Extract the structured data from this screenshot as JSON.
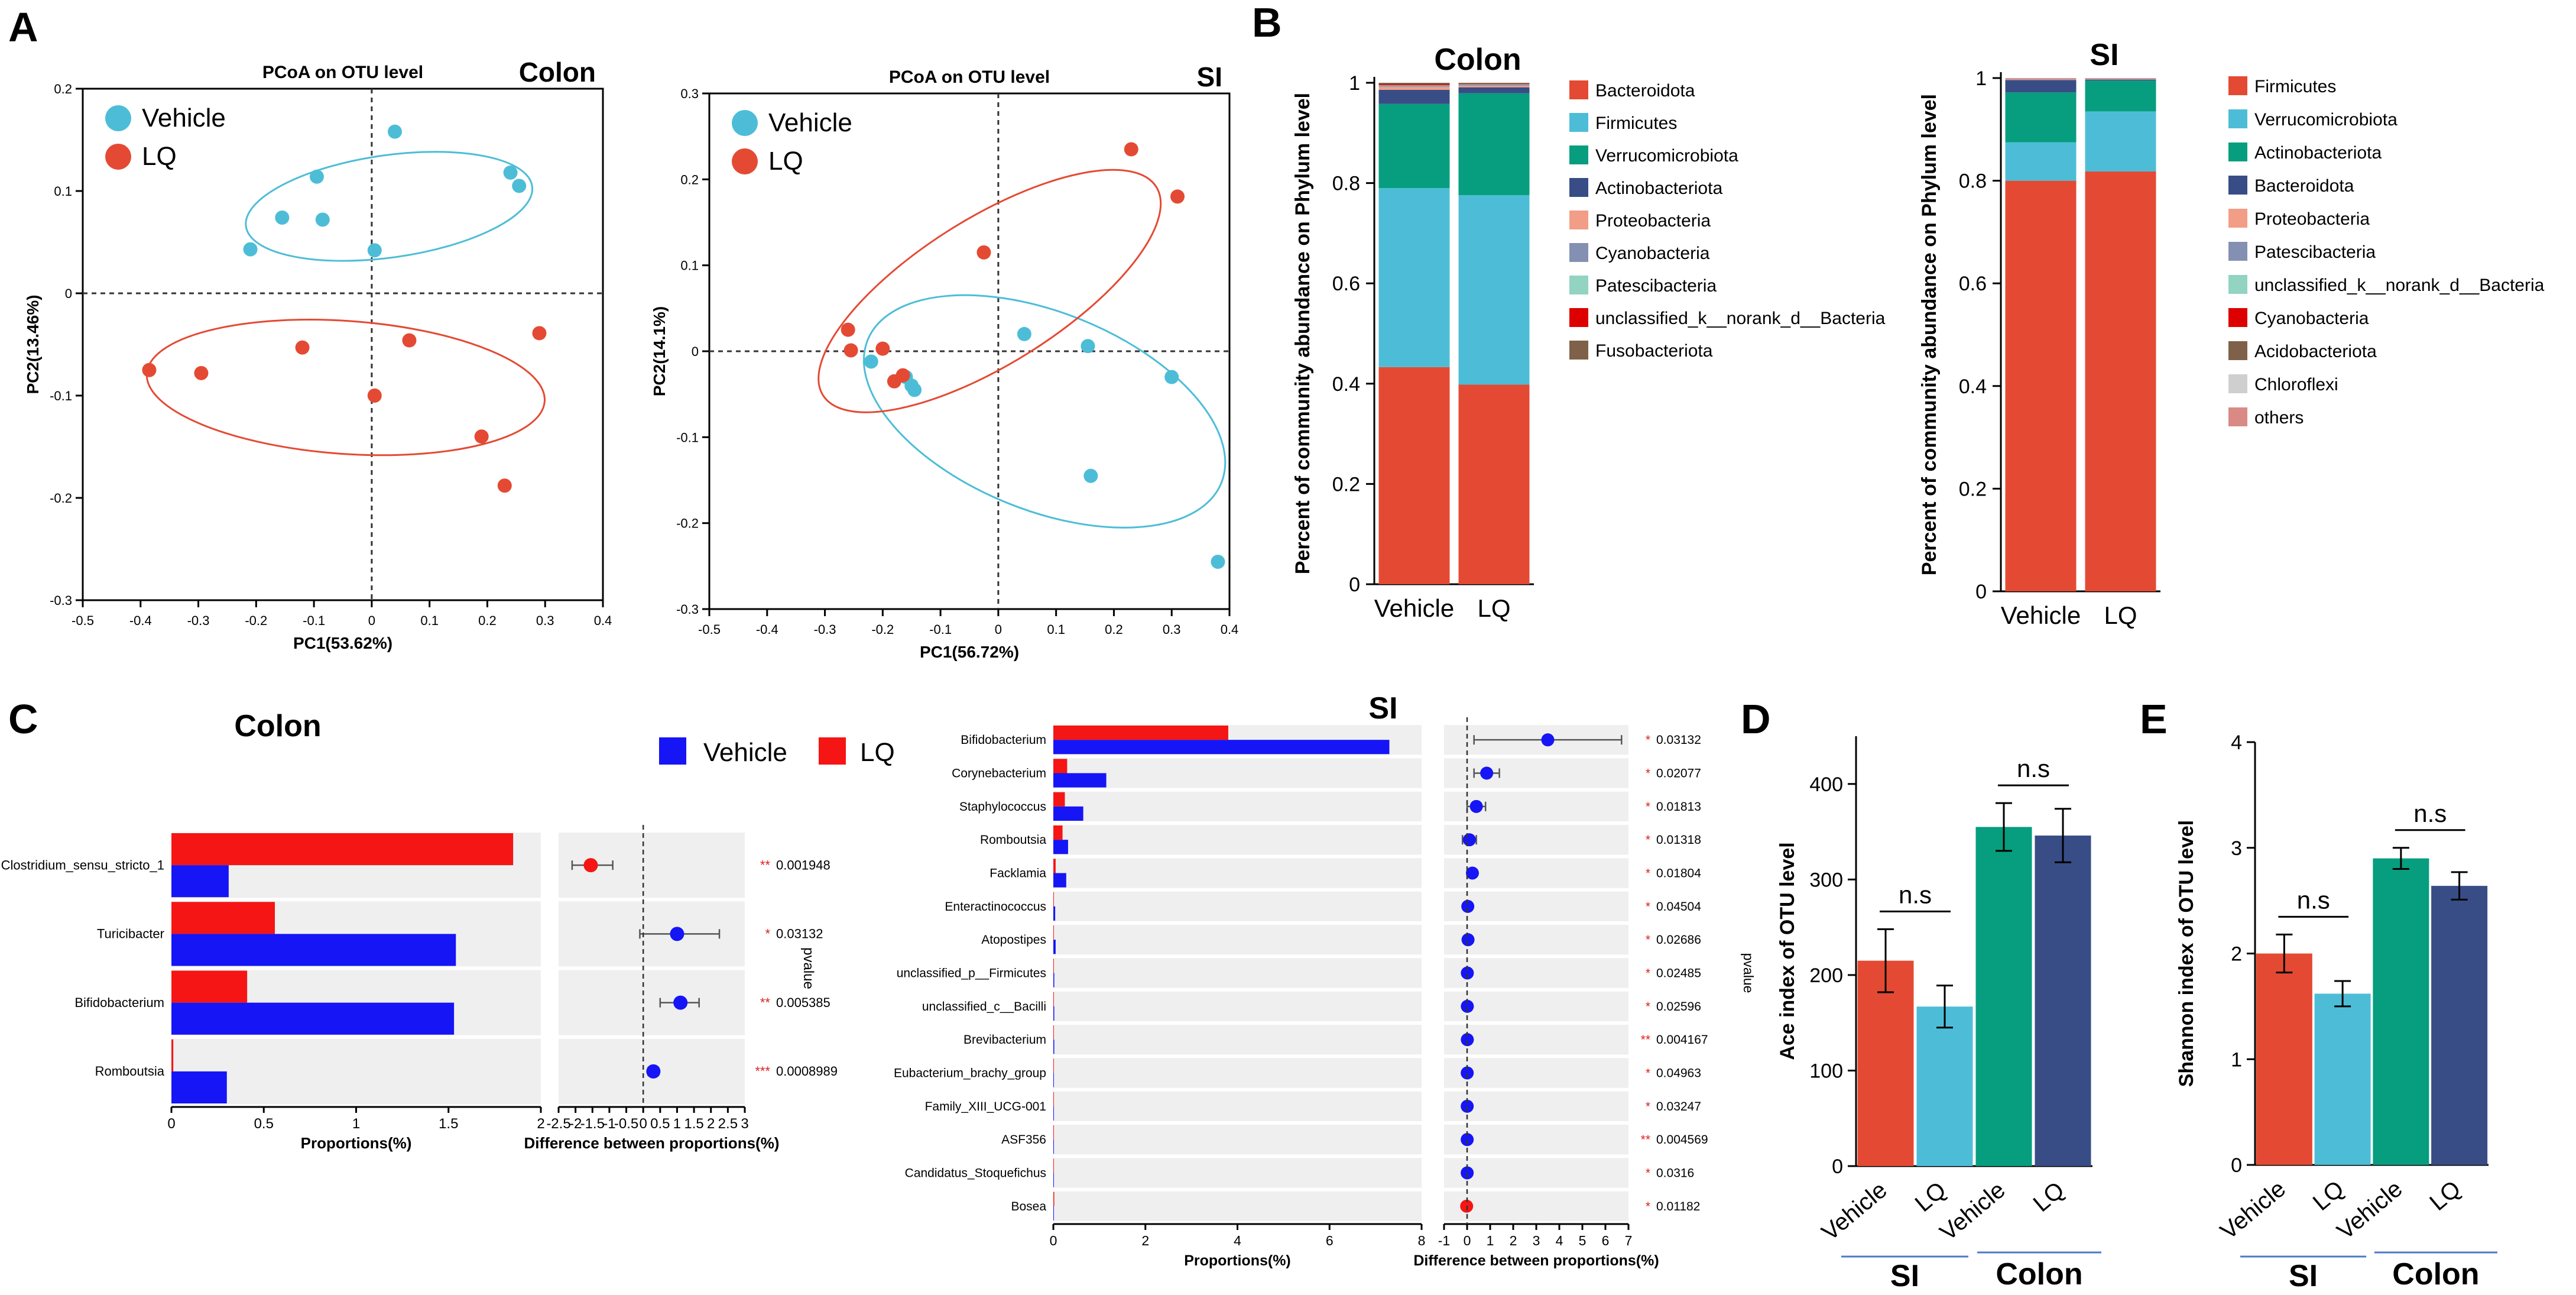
{
  "panel_labels": {
    "A": "A",
    "B": "B",
    "C": "C",
    "D": "D",
    "E": "E"
  },
  "colors": {
    "vehicle": "#4DBDD7",
    "lq": "#E44A33",
    "vehicle_c": "#1515F5",
    "lq_c": "#F51515",
    "teal": "#069E7E",
    "navy": "#384D86"
  },
  "chart_data": [
    {
      "id": "pcoa_colon",
      "type": "scatter",
      "title": "PCoA on OTU level",
      "corner_label": "Colon",
      "xlabel": "PC1(53.62%)",
      "ylabel": "PC2(13.46%)",
      "xlim": [
        -0.5,
        0.4
      ],
      "ylim": [
        -0.3,
        0.2
      ],
      "xticks": [
        "-0.5",
        "-0.4",
        "-0.3",
        "-0.2",
        "-0.1",
        "0",
        "0.1",
        "0.2",
        "0.3",
        "0.4"
      ],
      "yticks": [
        "0.2",
        "0.1",
        "0",
        "-0.1",
        "-0.2",
        "-0.3"
      ],
      "legend": [
        "Vehicle",
        "LQ"
      ],
      "series": [
        {
          "name": "Vehicle",
          "points": [
            [
              0.04,
              0.158
            ],
            [
              -0.095,
              0.114
            ],
            [
              -0.155,
              0.074
            ],
            [
              -0.085,
              0.072
            ],
            [
              0.24,
              0.118
            ],
            [
              0.255,
              0.105
            ],
            [
              -0.21,
              0.043
            ],
            [
              0.005,
              0.042
            ]
          ],
          "ellipse": {
            "cx": 0.03,
            "cy": 0.085,
            "rx": 0.25,
            "ry": 0.05,
            "angle": 8
          }
        },
        {
          "name": "LQ",
          "points": [
            [
              -0.385,
              -0.075
            ],
            [
              -0.295,
              -0.078
            ],
            [
              -0.12,
              -0.053
            ],
            [
              0.065,
              -0.046
            ],
            [
              0.29,
              -0.039
            ],
            [
              0.005,
              -0.1
            ],
            [
              0.19,
              -0.14
            ],
            [
              0.23,
              -0.188
            ]
          ],
          "ellipse": {
            "cx": -0.045,
            "cy": -0.092,
            "rx": 0.345,
            "ry": 0.065,
            "angle": -4
          }
        }
      ]
    },
    {
      "id": "pcoa_si",
      "type": "scatter",
      "title": "PCoA on OTU level",
      "corner_label": "SI",
      "xlabel": "PC1(56.72%)",
      "ylabel": "PC2(14.1%)",
      "xlim": [
        -0.5,
        0.4
      ],
      "ylim": [
        -0.3,
        0.3
      ],
      "xticks": [
        "-0.5",
        "-0.4",
        "-0.3",
        "-0.2",
        "-0.1",
        "0",
        "0.1",
        "0.2",
        "0.3",
        "0.4"
      ],
      "yticks": [
        "0.3",
        "0.2",
        "0.1",
        "0",
        "-0.1",
        "-0.2",
        "-0.3"
      ],
      "legend": [
        "Vehicle",
        "LQ"
      ],
      "series": [
        {
          "name": "Vehicle",
          "points": [
            [
              -0.22,
              -0.012
            ],
            [
              -0.16,
              -0.03
            ],
            [
              -0.15,
              -0.04
            ],
            [
              -0.145,
              -0.045
            ],
            [
              0.045,
              0.02
            ],
            [
              0.155,
              0.006
            ],
            [
              0.3,
              -0.03
            ],
            [
              0.16,
              -0.145
            ],
            [
              0.38,
              -0.245
            ]
          ],
          "ellipse": {
            "cx": 0.08,
            "cy": -0.07,
            "rx": 0.33,
            "ry": 0.115,
            "angle": -22
          }
        },
        {
          "name": "LQ",
          "points": [
            [
              0.23,
              0.235
            ],
            [
              0.31,
              0.18
            ],
            [
              -0.025,
              0.115
            ],
            [
              -0.26,
              0.025
            ],
            [
              -0.255,
              0.001
            ],
            [
              -0.2,
              0.003
            ],
            [
              -0.18,
              -0.035
            ],
            [
              -0.165,
              -0.028
            ]
          ],
          "ellipse": {
            "cx": -0.015,
            "cy": 0.07,
            "rx": 0.34,
            "ry": 0.085,
            "angle": 32
          }
        }
      ]
    },
    {
      "id": "phylum_colon",
      "type": "bar",
      "stacked": true,
      "title": "Colon",
      "ylabel": "Percent of community abundance on Phylum level",
      "categories": [
        "Vehicle",
        "LQ"
      ],
      "ylim": [
        0,
        1
      ],
      "yticks": [
        "0",
        "0.2",
        "0.4",
        "0.6",
        "0.8",
        "1"
      ],
      "series": [
        {
          "name": "Bacteroidota",
          "color": "#E44A33",
          "values": [
            0.433,
            0.398
          ]
        },
        {
          "name": "Firmicutes",
          "color": "#4DBDD7",
          "values": [
            0.357,
            0.378
          ]
        },
        {
          "name": "Verrucomicrobiota",
          "color": "#069E7E",
          "values": [
            0.168,
            0.203
          ]
        },
        {
          "name": "Actinobacteriota",
          "color": "#384D86",
          "values": [
            0.028,
            0.012
          ]
        },
        {
          "name": "Proteobacteria",
          "color": "#F29E86",
          "values": [
            0.006,
            0.003
          ]
        },
        {
          "name": "Cyanobacteria",
          "color": "#8490B2",
          "values": [
            0.002,
            0.002
          ]
        },
        {
          "name": "Patescibacteria",
          "color": "#92D3C2",
          "values": [
            0.001,
            0.001
          ]
        },
        {
          "name": "unclassified_k__norank_d__Bacteria",
          "color": "#DC0000",
          "values": [
            0.002,
            0.001
          ]
        },
        {
          "name": "Fusobacteriota",
          "color": "#7E6148",
          "values": [
            0.003,
            0.002
          ]
        }
      ]
    },
    {
      "id": "phylum_si",
      "type": "bar",
      "stacked": true,
      "title": "SI",
      "ylabel": "Percent of community abundance on Phylum level",
      "categories": [
        "Vehicle",
        "LQ"
      ],
      "ylim": [
        0,
        1
      ],
      "yticks": [
        "0",
        "0.2",
        "0.4",
        "0.6",
        "0.8",
        "1"
      ],
      "series": [
        {
          "name": "Firmicutes",
          "color": "#E44A33",
          "values": [
            0.8,
            0.818
          ]
        },
        {
          "name": "Verrucomicrobiota",
          "color": "#4DBDD7",
          "values": [
            0.075,
            0.117
          ]
        },
        {
          "name": "Actinobacteriota",
          "color": "#069E7E",
          "values": [
            0.097,
            0.06
          ]
        },
        {
          "name": "Bacteroidota",
          "color": "#384D86",
          "values": [
            0.024,
            0.002
          ]
        },
        {
          "name": "Proteobacteria",
          "color": "#F29E86",
          "values": [
            0.001,
            0.001
          ]
        },
        {
          "name": "Patescibacteria",
          "color": "#8490B2",
          "values": [
            0.001,
            0.001
          ]
        },
        {
          "name": "unclassified_k__norank_d__Bacteria",
          "color": "#92D3C2",
          "values": [
            0.0,
            0.0
          ]
        },
        {
          "name": "Cyanobacteria",
          "color": "#DC0000",
          "values": [
            0.0,
            0.0
          ]
        },
        {
          "name": "Acidobacteriota",
          "color": "#7E6148",
          "values": [
            0.0,
            0.0
          ]
        },
        {
          "name": "Chloroflexi",
          "color": "#CFCFCF",
          "values": [
            0.0,
            0.0
          ]
        },
        {
          "name": "others",
          "color": "#D98A85",
          "values": [
            0.002,
            0.001
          ]
        }
      ]
    },
    {
      "id": "welch_colon",
      "type": "bar",
      "orientation": "horizontal",
      "title": "Colon",
      "legend": [
        "Vehicle",
        "LQ"
      ],
      "xlabel": "Proportions(%)",
      "xlabel2": "Difference between proportions(%)",
      "pvalue_label": "pvalue",
      "xlim": [
        0,
        2
      ],
      "xticks": [
        "0",
        "0.5",
        "1",
        "1.5",
        "2"
      ],
      "diff_xlim": [
        -2.5,
        3
      ],
      "diff_xticks": [
        "-2.5",
        "-2",
        "-1.5",
        "-1",
        "-0.5",
        "0",
        "0.5",
        "1",
        "1.5",
        "2",
        "2.5",
        "3"
      ],
      "categories": [
        "Clostridium_sensu_stricto_1",
        "Turicibacter",
        "Bifidobacterium",
        "Romboutsia"
      ],
      "series": [
        {
          "name": "LQ",
          "values": [
            1.85,
            0.56,
            0.41,
            0.01
          ]
        },
        {
          "name": "Vehicle",
          "values": [
            0.31,
            1.54,
            1.53,
            0.3
          ]
        }
      ],
      "diff": [
        {
          "value": -1.55,
          "lo": -2.1,
          "hi": -0.9
        },
        {
          "value": 1.0,
          "lo": -0.1,
          "hi": 2.25
        },
        {
          "value": 1.1,
          "lo": 0.5,
          "hi": 1.65
        },
        {
          "value": 0.3,
          "lo": 0.15,
          "hi": 0.45
        }
      ],
      "stars": [
        "**",
        "*",
        "**",
        "***"
      ],
      "pvalues": [
        "0.001948",
        "0.03132",
        "0.005385",
        "0.0008989"
      ]
    },
    {
      "id": "welch_si",
      "type": "bar",
      "orientation": "horizontal",
      "title": "SI",
      "xlabel": "Proportions(%)",
      "xlabel2": "Difference between proportions(%)",
      "pvalue_label": "pvalue",
      "xlim": [
        0,
        8
      ],
      "xticks": [
        "0",
        "2",
        "4",
        "6",
        "8"
      ],
      "diff_xlim": [
        -1,
        7
      ],
      "diff_xticks": [
        "-1",
        "0",
        "1",
        "2",
        "3",
        "4",
        "5",
        "6",
        "7"
      ],
      "categories": [
        "Bifidobacterium",
        "Corynebacterium",
        "Staphylococcus",
        "Romboutsia",
        "Facklamia",
        "Enteractinococcus",
        "Atopostipes",
        "unclassified_p__Firmicutes",
        "unclassified_c__Bacilli",
        "Brevibacterium",
        "Eubacterium_brachy_group",
        "Family_XIII_UCG-001",
        "ASF356",
        "Candidatus_Stoquefichus",
        "Bosea"
      ],
      "series": [
        {
          "name": "LQ",
          "values": [
            3.8,
            0.3,
            0.25,
            0.2,
            0.05,
            0.01,
            0.01,
            0.01,
            0.01,
            0.01,
            0.01,
            0.01,
            0.01,
            0.01,
            0.02
          ]
        },
        {
          "name": "Vehicle",
          "values": [
            7.3,
            1.15,
            0.65,
            0.32,
            0.28,
            0.04,
            0.05,
            0.02,
            0.02,
            0.02,
            0.01,
            0.01,
            0.01,
            0.01,
            0.0
          ]
        }
      ],
      "diff": [
        {
          "value": 3.5,
          "lo": 0.3,
          "hi": 6.7
        },
        {
          "value": 0.85,
          "lo": 0.3,
          "hi": 1.4
        },
        {
          "value": 0.4,
          "lo": 0.0,
          "hi": 0.8
        },
        {
          "value": 0.1,
          "lo": -0.2,
          "hi": 0.4
        },
        {
          "value": 0.23,
          "lo": 0.1,
          "hi": 0.36
        },
        {
          "value": 0.03,
          "lo": 0.0,
          "hi": 0.06
        },
        {
          "value": 0.04,
          "lo": 0.0,
          "hi": 0.08
        },
        {
          "value": 0.01,
          "lo": 0.0,
          "hi": 0.02
        },
        {
          "value": 0.01,
          "lo": 0.0,
          "hi": 0.02
        },
        {
          "value": 0.01,
          "lo": 0.0,
          "hi": 0.02
        },
        {
          "value": 0.005,
          "lo": 0.0,
          "hi": 0.01
        },
        {
          "value": 0.005,
          "lo": 0.0,
          "hi": 0.01
        },
        {
          "value": 0.004,
          "lo": 0.0,
          "hi": 0.008
        },
        {
          "value": 0.004,
          "lo": 0.0,
          "hi": 0.008
        },
        {
          "value": -0.02,
          "lo": -0.04,
          "hi": 0.0
        }
      ],
      "stars": [
        "*",
        "*",
        "*",
        "*",
        "*",
        "*",
        "*",
        "*",
        "*",
        "**",
        "*",
        "*",
        "**",
        "*",
        "*"
      ],
      "pvalues": [
        "0.03132",
        "0.02077",
        "0.01813",
        "0.01318",
        "0.01804",
        "0.04504",
        "0.02686",
        "0.02485",
        "0.02596",
        "0.004167",
        "0.04963",
        "0.03247",
        "0.004569",
        "0.0316",
        "0.01182"
      ]
    },
    {
      "id": "ace",
      "type": "bar",
      "ylabel": "Ace index of OTU level",
      "categories": [
        "Vehicle",
        "LQ",
        "Vehicle",
        "LQ"
      ],
      "groups": [
        "SI",
        "Colon"
      ],
      "values": [
        215,
        167,
        355,
        346
      ],
      "errors": [
        33,
        22,
        25,
        28
      ],
      "colors": [
        "#E44A33",
        "#4DBDD7",
        "#069E7E",
        "#384D86"
      ],
      "ylim": [
        0,
        450
      ],
      "yticks": [
        "0",
        "100",
        "200",
        "300",
        "400"
      ],
      "annotation": "n.s"
    },
    {
      "id": "shannon",
      "type": "bar",
      "ylabel": "Shannon index of OTU level",
      "categories": [
        "Vehicle",
        "LQ",
        "Vehicle",
        "LQ"
      ],
      "groups": [
        "SI",
        "Colon"
      ],
      "values": [
        2.0,
        1.62,
        2.9,
        2.64
      ],
      "errors": [
        0.18,
        0.12,
        0.1,
        0.13
      ],
      "colors": [
        "#E44A33",
        "#4DBDD7",
        "#069E7E",
        "#384D86"
      ],
      "ylim": [
        0,
        4
      ],
      "yticks": [
        "0",
        "1",
        "2",
        "3",
        "4"
      ],
      "annotation": "n.s"
    }
  ]
}
